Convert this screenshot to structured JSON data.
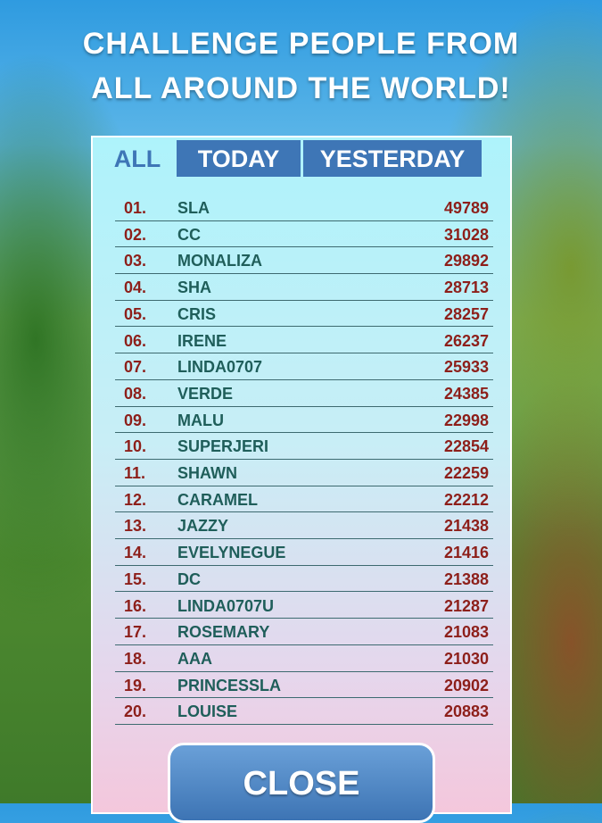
{
  "header": {
    "title_lines": [
      "CHALLENGE PEOPLE FROM",
      "ALL AROUND THE WORLD!"
    ]
  },
  "tabs": [
    "ALL",
    "TODAY",
    "YESTERDAY"
  ],
  "leaderboard": {
    "rows": [
      [
        "01.",
        "SLA",
        49789
      ],
      [
        "02.",
        "CC",
        31028
      ],
      [
        "03.",
        "MONALIZA",
        29892
      ],
      [
        "04.",
        "SHA",
        28713
      ],
      [
        "05.",
        "CRIS",
        28257
      ],
      [
        "06.",
        "IRENE",
        26237
      ],
      [
        "07.",
        "LINDA0707",
        25933
      ],
      [
        "08.",
        "VERDE",
        24385
      ],
      [
        "09.",
        "MALU",
        22998
      ],
      [
        "10.",
        "SUPERJERI",
        22854
      ],
      [
        "11.",
        "SHAWN",
        22259
      ],
      [
        "12.",
        "CARAMEL",
        22212
      ],
      [
        "13.",
        "JAZZY",
        21438
      ],
      [
        "14.",
        "EVELYNEGUE",
        21416
      ],
      [
        "15.",
        "DC",
        21388
      ],
      [
        "16.",
        "LINDA0707U",
        21287
      ],
      [
        "17.",
        "ROSEMARY",
        21083
      ],
      [
        "18.",
        "AAA",
        21030
      ],
      [
        "19.",
        "PRINCESSLA",
        20902
      ],
      [
        "20.",
        "LOUISE",
        20883
      ]
    ]
  },
  "close_button": "CLOSE"
}
